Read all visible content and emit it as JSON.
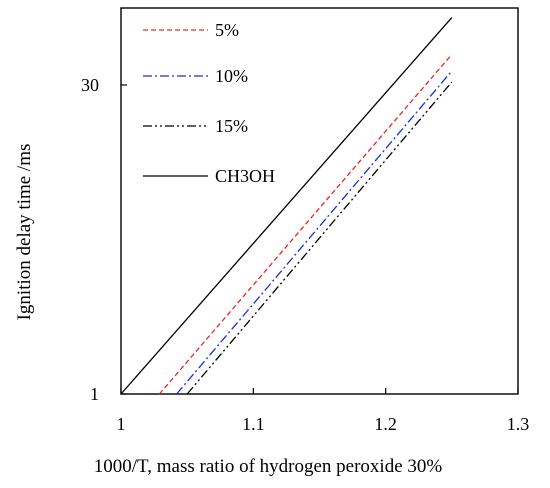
{
  "chart_data": {
    "type": "line",
    "xlabel": "1000/T, mass ratio of hydrogen peroxide 30%",
    "ylabel": "Ignition delay time /ms",
    "xlim": [
      1.0,
      1.3
    ],
    "ylim": [
      1,
      70
    ],
    "yscale": "log",
    "grid": false,
    "legend_position": "top-left",
    "xticks": [
      {
        "value": 1.0,
        "label": "1"
      },
      {
        "value": 1.1,
        "label": "1.1"
      },
      {
        "value": 1.2,
        "label": "1.2"
      },
      {
        "value": 1.3,
        "label": "1.3"
      }
    ],
    "yticks": [
      {
        "value": 1,
        "label": "1"
      },
      {
        "value": 30,
        "label": "30"
      }
    ],
    "series": [
      {
        "name": "5%",
        "color": "#e8262a",
        "dash": "dashed",
        "x": [
          1.029,
          1.25
        ],
        "y": [
          1,
          42
        ]
      },
      {
        "name": "10%",
        "color": "#1a2fd6",
        "dash": "dashdot",
        "x": [
          1.042,
          1.25
        ],
        "y": [
          1,
          35
        ]
      },
      {
        "name": "15%",
        "color": "#000000",
        "dash": "dashdotdot",
        "x": [
          1.05,
          1.25
        ],
        "y": [
          1,
          31
        ]
      },
      {
        "name": "CH3OH",
        "color": "#000000",
        "dash": "solid",
        "x": [
          1.0,
          1.25
        ],
        "y": [
          1,
          63
        ]
      }
    ]
  }
}
